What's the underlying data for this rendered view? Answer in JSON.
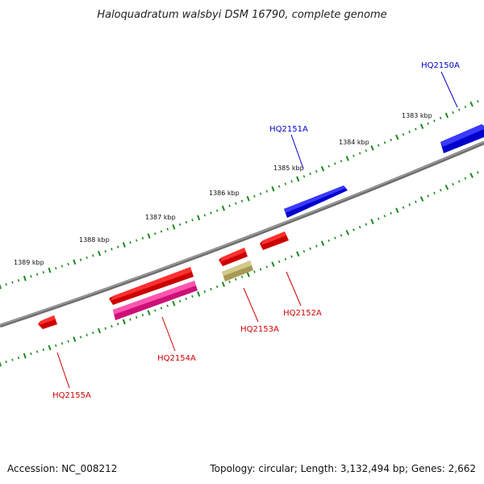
{
  "title": "Haloquadratum walsbyi DSM 16790, complete genome",
  "footer": {
    "accession": "Accession: NC_008212",
    "topology": "Topology: circular; Length: 3,132,494 bp; Genes: 2,662"
  },
  "colors": {
    "backbone": "#7a7a7a",
    "ticks": "#1a8a1a",
    "forward_gene": "#0000ee",
    "reverse_gene": "#ee0000",
    "pink_feature": "#ee1493",
    "olive_feature": "#b5aa66",
    "forward_label": "#0000cc",
    "reverse_label": "#cc0000"
  },
  "kbp_labels": [
    "1383 kbp",
    "1384 kbp",
    "1385 kbp",
    "1386 kbp",
    "1387 kbp",
    "1388 kbp",
    "1389 kbp"
  ],
  "genes": [
    {
      "label": "HQ2150A",
      "strand": "forward"
    },
    {
      "label": "HQ2151A",
      "strand": "forward"
    },
    {
      "label": "HQ2152A",
      "strand": "reverse"
    },
    {
      "label": "HQ2153A",
      "strand": "reverse"
    },
    {
      "label": "HQ2154A",
      "strand": "reverse"
    },
    {
      "label": "HQ2155A",
      "strand": "reverse"
    }
  ]
}
